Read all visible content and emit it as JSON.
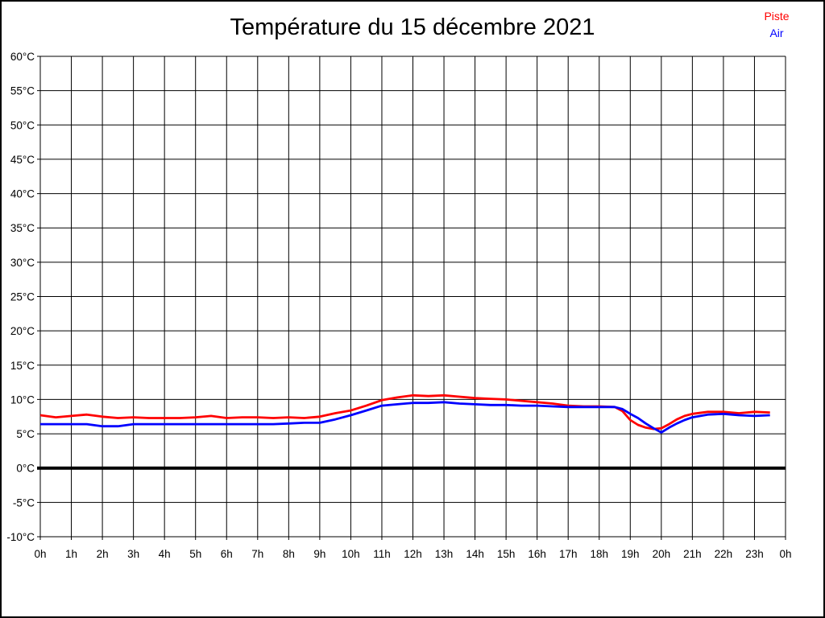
{
  "title": "Température du 15 décembre 2021",
  "legend": {
    "piste": "Piste",
    "air": "Air"
  },
  "colors": {
    "piste": "#ff0000",
    "air": "#0000ff",
    "grid": "#000000",
    "zero_line": "#000000",
    "background": "#ffffff",
    "text": "#000000"
  },
  "chart_data": {
    "type": "line",
    "title": "Température du 15 décembre 2021",
    "xlabel": "",
    "ylabel": "",
    "xlim": [
      0,
      24
    ],
    "ylim": [
      -10,
      60
    ],
    "y_tick_step": 5,
    "grid": true,
    "legend_position": "top-right",
    "x_tick_labels": [
      "0h",
      "1h",
      "2h",
      "3h",
      "4h",
      "5h",
      "6h",
      "7h",
      "8h",
      "9h",
      "10h",
      "11h",
      "12h",
      "13h",
      "14h",
      "15h",
      "16h",
      "17h",
      "18h",
      "19h",
      "20h",
      "21h",
      "22h",
      "23h",
      "0h"
    ],
    "y_tick_values": [
      -10,
      -5,
      0,
      5,
      10,
      15,
      20,
      25,
      30,
      35,
      40,
      45,
      50,
      55,
      60
    ],
    "y_tick_labels": [
      "-10°C",
      "-5°C",
      "0°C",
      "5°C",
      "10°C",
      "15°C",
      "20°C",
      "25°C",
      "30°C",
      "35°C",
      "40°C",
      "45°C",
      "50°C",
      "55°C",
      "60°C"
    ],
    "zero_line_emphasis": true,
    "x": [
      0,
      0.5,
      1,
      1.5,
      2,
      2.5,
      3,
      3.5,
      4,
      4.5,
      5,
      5.5,
      6,
      6.5,
      7,
      7.5,
      8,
      8.5,
      9,
      9.5,
      10,
      10.5,
      11,
      11.5,
      12,
      12.5,
      13,
      13.5,
      14,
      14.5,
      15,
      15.5,
      16,
      16.5,
      17,
      17.5,
      18,
      18.5,
      18.75,
      19,
      19.25,
      19.5,
      19.75,
      20,
      20.25,
      20.5,
      20.75,
      21,
      21.5,
      22,
      22.5,
      23,
      23.5
    ],
    "series": [
      {
        "name": "Piste",
        "color": "#ff0000",
        "values": [
          7.7,
          7.4,
          7.6,
          7.8,
          7.5,
          7.3,
          7.4,
          7.3,
          7.3,
          7.3,
          7.4,
          7.6,
          7.3,
          7.4,
          7.4,
          7.3,
          7.4,
          7.3,
          7.5,
          8.0,
          8.4,
          9.1,
          9.9,
          10.3,
          10.6,
          10.5,
          10.6,
          10.4,
          10.2,
          10.1,
          10.0,
          9.8,
          9.6,
          9.4,
          9.1,
          9.0,
          9.0,
          8.9,
          8.3,
          7.0,
          6.3,
          5.9,
          5.7,
          5.8,
          6.4,
          7.1,
          7.6,
          7.9,
          8.2,
          8.2,
          8.0,
          8.2,
          8.1
        ]
      },
      {
        "name": "Air",
        "color": "#0000ff",
        "values": [
          6.4,
          6.4,
          6.4,
          6.4,
          6.1,
          6.1,
          6.4,
          6.4,
          6.4,
          6.4,
          6.4,
          6.4,
          6.4,
          6.4,
          6.4,
          6.4,
          6.5,
          6.6,
          6.6,
          7.1,
          7.7,
          8.4,
          9.1,
          9.3,
          9.5,
          9.5,
          9.6,
          9.4,
          9.3,
          9.2,
          9.2,
          9.1,
          9.1,
          9.0,
          8.9,
          8.9,
          8.9,
          8.9,
          8.6,
          7.9,
          7.3,
          6.5,
          5.8,
          5.2,
          5.9,
          6.5,
          7.0,
          7.4,
          7.8,
          7.9,
          7.7,
          7.6,
          7.7
        ]
      }
    ]
  }
}
